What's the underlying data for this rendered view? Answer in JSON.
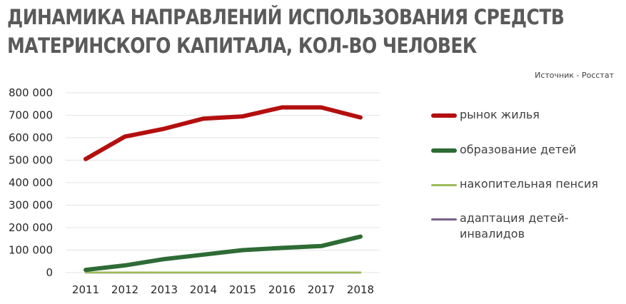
{
  "title_lines": [
    "ДИНАМИКА НАПРАВЛЕНИЙ ИСПОЛЬЗОВАНИЯ СРЕДСТВ",
    "МАТЕРИНСКОГО КАПИТАЛА, КОЛ-ВО ЧЕЛОВЕК"
  ],
  "source": "Источник - Росстат",
  "chart_data": {
    "type": "line",
    "title": "ДИНАМИКА НАПРАВЛЕНИЙ ИСПОЛЬЗОВАНИЯ СРЕДСТВ МАТЕРИНСКОГО КАПИТАЛА, КОЛ-ВО ЧЕЛОВЕК",
    "xlabel": "",
    "ylabel": "",
    "categories": [
      "2011",
      "2012",
      "2013",
      "2014",
      "2015",
      "2016",
      "2017",
      "2018"
    ],
    "ylim": [
      0,
      800000
    ],
    "yticks": [
      0,
      100000,
      200000,
      300000,
      400000,
      500000,
      600000,
      700000,
      800000
    ],
    "ytick_labels": [
      "0",
      "100 000",
      "200 000",
      "300 000",
      "400 000",
      "500 000",
      "600 000",
      "700 000",
      "800 000"
    ],
    "grid": true,
    "legend_position": "right",
    "series": [
      {
        "name": "рынок жилья",
        "color": "#b40f0f",
        "width": 6,
        "values": [
          505000,
          605000,
          640000,
          685000,
          695000,
          735000,
          735000,
          690000
        ]
      },
      {
        "name": "образование детей",
        "color": "#2e6b35",
        "width": 6,
        "values": [
          12000,
          32000,
          60000,
          80000,
          100000,
          110000,
          118000,
          160000
        ]
      },
      {
        "name": "накопительная пенсия",
        "color": "#9cbb59",
        "width": 2.5,
        "values": [
          1000,
          1000,
          1000,
          1000,
          1000,
          1000,
          1000,
          1000
        ]
      },
      {
        "name": "адаптация детей-инвалидов",
        "color": "#7a5f8c",
        "width": 2.5,
        "values": [
          0,
          0,
          0,
          0,
          0,
          0,
          0,
          0
        ]
      }
    ]
  }
}
